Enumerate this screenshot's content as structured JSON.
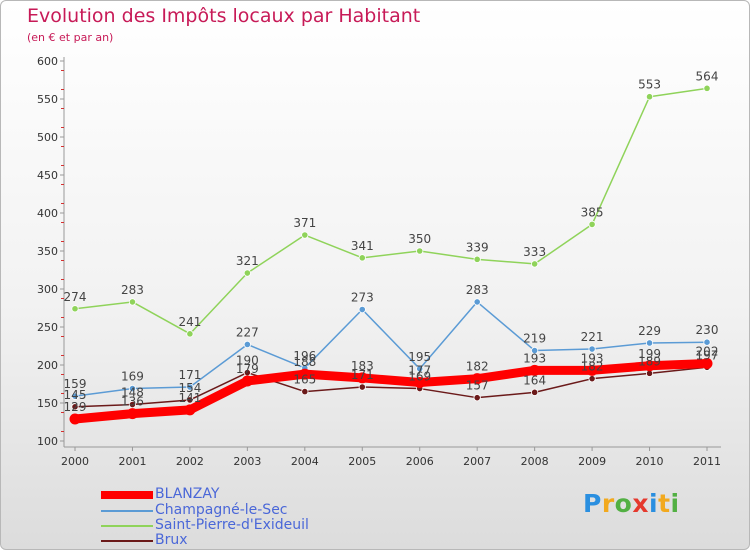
{
  "title": "Evolution des Impôts locaux par Habitant",
  "subtitle": "(en € et par an)",
  "logo": "Proxiti",
  "chart_data": {
    "type": "line",
    "categories": [
      "2000",
      "2001",
      "2002",
      "2003",
      "2004",
      "2005",
      "2006",
      "2007",
      "2008",
      "2009",
      "2010",
      "2011"
    ],
    "ylim": [
      100,
      600
    ],
    "yticks": [
      100,
      150,
      200,
      250,
      300,
      350,
      400,
      450,
      500,
      550,
      600
    ],
    "grid": false,
    "legend_position": "bottom-left",
    "series": [
      {
        "name": "BLANZAY",
        "color": "#ff0000",
        "values": [
          129,
          136,
          141,
          179,
          188,
          183,
          177,
          182,
          193,
          193,
          199,
          202
        ],
        "labels": [
          "129",
          "136",
          "141",
          "179",
          "188",
          "183",
          "177",
          "182",
          "193",
          "193",
          "199",
          "202"
        ]
      },
      {
        "name": "Champagné-le-Sec",
        "color": "#5b9bd5",
        "values": [
          159,
          169,
          171,
          227,
          196,
          273,
          195,
          283,
          219,
          221,
          229,
          230
        ],
        "labels": [
          "159",
          "169",
          "171",
          "227",
          "196",
          "273",
          "195",
          "283",
          "219",
          "221",
          "229",
          "230"
        ]
      },
      {
        "name": "Saint-Pierre-d'Exideuil",
        "color": "#8fd35a",
        "values": [
          274,
          283,
          241,
          321,
          371,
          341,
          350,
          339,
          333,
          385,
          553,
          564
        ],
        "labels": [
          "274",
          "283",
          "241",
          "321",
          "371",
          "341",
          "350",
          "339",
          "333",
          "385",
          "553",
          "564"
        ]
      },
      {
        "name": "Brux",
        "color": "#6b1a1a",
        "values": [
          145,
          148,
          154,
          190,
          165,
          171,
          169,
          157,
          164,
          182,
          189,
          197
        ],
        "labels": [
          "145",
          "148",
          "154",
          "190",
          "165",
          "171",
          "169",
          "157",
          "164",
          "182",
          "189",
          "197"
        ]
      }
    ]
  }
}
